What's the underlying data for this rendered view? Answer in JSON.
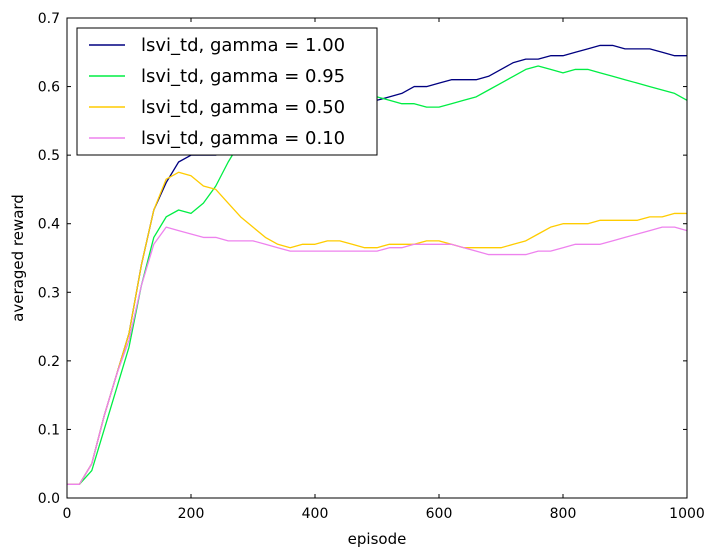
{
  "chart_data": {
    "type": "line",
    "title": "",
    "xlabel": "episode",
    "ylabel": "averaged reward",
    "xlim": [
      0,
      1000
    ],
    "ylim": [
      0.0,
      0.7
    ],
    "x_ticks": [
      0,
      200,
      400,
      600,
      800,
      1000
    ],
    "y_ticks": [
      0.0,
      0.1,
      0.2,
      0.3,
      0.4,
      0.5,
      0.6,
      0.7
    ],
    "x_tick_labels": [
      "0",
      "200",
      "400",
      "600",
      "800",
      "1000"
    ],
    "y_tick_labels": [
      "0.0",
      "0.1",
      "0.2",
      "0.3",
      "0.4",
      "0.5",
      "0.6",
      "0.7"
    ],
    "grid": false,
    "legend_position": "top-left",
    "series": [
      {
        "name": "lsvi_td, gamma = 1.00",
        "color": "#000080",
        "points": [
          [
            0,
            0.02
          ],
          [
            20,
            0.02
          ],
          [
            40,
            0.05
          ],
          [
            60,
            0.12
          ],
          [
            80,
            0.18
          ],
          [
            100,
            0.24
          ],
          [
            120,
            0.34
          ],
          [
            140,
            0.42
          ],
          [
            160,
            0.46
          ],
          [
            180,
            0.49
          ],
          [
            200,
            0.5
          ],
          [
            220,
            0.5
          ],
          [
            240,
            0.5
          ],
          [
            260,
            0.51
          ],
          [
            280,
            0.53
          ],
          [
            300,
            0.55
          ],
          [
            320,
            0.56
          ],
          [
            340,
            0.57
          ],
          [
            360,
            0.58
          ],
          [
            380,
            0.58
          ],
          [
            400,
            0.59
          ],
          [
            420,
            0.58
          ],
          [
            440,
            0.58
          ],
          [
            460,
            0.58
          ],
          [
            480,
            0.575
          ],
          [
            500,
            0.58
          ],
          [
            520,
            0.585
          ],
          [
            540,
            0.59
          ],
          [
            560,
            0.6
          ],
          [
            580,
            0.6
          ],
          [
            600,
            0.605
          ],
          [
            620,
            0.61
          ],
          [
            640,
            0.61
          ],
          [
            660,
            0.61
          ],
          [
            680,
            0.615
          ],
          [
            700,
            0.625
          ],
          [
            720,
            0.635
          ],
          [
            740,
            0.64
          ],
          [
            760,
            0.64
          ],
          [
            780,
            0.645
          ],
          [
            800,
            0.645
          ],
          [
            820,
            0.65
          ],
          [
            840,
            0.655
          ],
          [
            860,
            0.66
          ],
          [
            880,
            0.66
          ],
          [
            900,
            0.655
          ],
          [
            920,
            0.655
          ],
          [
            940,
            0.655
          ],
          [
            960,
            0.65
          ],
          [
            980,
            0.645
          ],
          [
            1000,
            0.645
          ]
        ]
      },
      {
        "name": "lsvi_td, gamma = 0.95",
        "color": "#00ee44",
        "points": [
          [
            0,
            0.02
          ],
          [
            20,
            0.02
          ],
          [
            40,
            0.04
          ],
          [
            60,
            0.1
          ],
          [
            80,
            0.16
          ],
          [
            100,
            0.22
          ],
          [
            120,
            0.31
          ],
          [
            140,
            0.38
          ],
          [
            160,
            0.41
          ],
          [
            180,
            0.42
          ],
          [
            200,
            0.415
          ],
          [
            220,
            0.43
          ],
          [
            240,
            0.455
          ],
          [
            260,
            0.49
          ],
          [
            280,
            0.52
          ],
          [
            300,
            0.545
          ],
          [
            320,
            0.56
          ],
          [
            340,
            0.57
          ],
          [
            360,
            0.58
          ],
          [
            380,
            0.59
          ],
          [
            400,
            0.59
          ],
          [
            420,
            0.595
          ],
          [
            440,
            0.595
          ],
          [
            460,
            0.595
          ],
          [
            480,
            0.59
          ],
          [
            500,
            0.585
          ],
          [
            520,
            0.58
          ],
          [
            540,
            0.575
          ],
          [
            560,
            0.575
          ],
          [
            580,
            0.57
          ],
          [
            600,
            0.57
          ],
          [
            620,
            0.575
          ],
          [
            640,
            0.58
          ],
          [
            660,
            0.585
          ],
          [
            680,
            0.595
          ],
          [
            700,
            0.605
          ],
          [
            720,
            0.615
          ],
          [
            740,
            0.625
          ],
          [
            760,
            0.63
          ],
          [
            780,
            0.625
          ],
          [
            800,
            0.62
          ],
          [
            820,
            0.625
          ],
          [
            840,
            0.625
          ],
          [
            860,
            0.62
          ],
          [
            880,
            0.615
          ],
          [
            900,
            0.61
          ],
          [
            920,
            0.605
          ],
          [
            940,
            0.6
          ],
          [
            960,
            0.595
          ],
          [
            980,
            0.59
          ],
          [
            1000,
            0.58
          ]
        ]
      },
      {
        "name": "lsvi_td, gamma = 0.50",
        "color": "#ffcc00",
        "points": [
          [
            0,
            0.02
          ],
          [
            20,
            0.02
          ],
          [
            40,
            0.05
          ],
          [
            60,
            0.12
          ],
          [
            80,
            0.18
          ],
          [
            100,
            0.24
          ],
          [
            120,
            0.34
          ],
          [
            140,
            0.42
          ],
          [
            160,
            0.465
          ],
          [
            180,
            0.475
          ],
          [
            200,
            0.47
          ],
          [
            220,
            0.455
          ],
          [
            240,
            0.45
          ],
          [
            260,
            0.43
          ],
          [
            280,
            0.41
          ],
          [
            300,
            0.395
          ],
          [
            320,
            0.38
          ],
          [
            340,
            0.37
          ],
          [
            360,
            0.365
          ],
          [
            380,
            0.37
          ],
          [
            400,
            0.37
          ],
          [
            420,
            0.375
          ],
          [
            440,
            0.375
          ],
          [
            460,
            0.37
          ],
          [
            480,
            0.365
          ],
          [
            500,
            0.365
          ],
          [
            520,
            0.37
          ],
          [
            540,
            0.37
          ],
          [
            560,
            0.37
          ],
          [
            580,
            0.375
          ],
          [
            600,
            0.375
          ],
          [
            620,
            0.37
          ],
          [
            640,
            0.365
          ],
          [
            660,
            0.365
          ],
          [
            680,
            0.365
          ],
          [
            700,
            0.365
          ],
          [
            720,
            0.37
          ],
          [
            740,
            0.375
          ],
          [
            760,
            0.385
          ],
          [
            780,
            0.395
          ],
          [
            800,
            0.4
          ],
          [
            820,
            0.4
          ],
          [
            840,
            0.4
          ],
          [
            860,
            0.405
          ],
          [
            880,
            0.405
          ],
          [
            900,
            0.405
          ],
          [
            920,
            0.405
          ],
          [
            940,
            0.41
          ],
          [
            960,
            0.41
          ],
          [
            980,
            0.415
          ],
          [
            1000,
            0.415
          ]
        ]
      },
      {
        "name": "lsvi_td, gamma = 0.10",
        "color": "#ee82ee",
        "points": [
          [
            0,
            0.02
          ],
          [
            20,
            0.02
          ],
          [
            40,
            0.05
          ],
          [
            60,
            0.12
          ],
          [
            80,
            0.18
          ],
          [
            100,
            0.23
          ],
          [
            120,
            0.31
          ],
          [
            140,
            0.37
          ],
          [
            160,
            0.395
          ],
          [
            180,
            0.39
          ],
          [
            200,
            0.385
          ],
          [
            220,
            0.38
          ],
          [
            240,
            0.38
          ],
          [
            260,
            0.375
          ],
          [
            280,
            0.375
          ],
          [
            300,
            0.375
          ],
          [
            320,
            0.37
          ],
          [
            340,
            0.365
          ],
          [
            360,
            0.36
          ],
          [
            380,
            0.36
          ],
          [
            400,
            0.36
          ],
          [
            420,
            0.36
          ],
          [
            440,
            0.36
          ],
          [
            460,
            0.36
          ],
          [
            480,
            0.36
          ],
          [
            500,
            0.36
          ],
          [
            520,
            0.365
          ],
          [
            540,
            0.365
          ],
          [
            560,
            0.37
          ],
          [
            580,
            0.37
          ],
          [
            600,
            0.37
          ],
          [
            620,
            0.37
          ],
          [
            640,
            0.365
          ],
          [
            660,
            0.36
          ],
          [
            680,
            0.355
          ],
          [
            700,
            0.355
          ],
          [
            720,
            0.355
          ],
          [
            740,
            0.355
          ],
          [
            760,
            0.36
          ],
          [
            780,
            0.36
          ],
          [
            800,
            0.365
          ],
          [
            820,
            0.37
          ],
          [
            840,
            0.37
          ],
          [
            860,
            0.37
          ],
          [
            880,
            0.375
          ],
          [
            900,
            0.38
          ],
          [
            920,
            0.385
          ],
          [
            940,
            0.39
          ],
          [
            960,
            0.395
          ],
          [
            980,
            0.395
          ],
          [
            1000,
            0.39
          ]
        ]
      }
    ]
  }
}
